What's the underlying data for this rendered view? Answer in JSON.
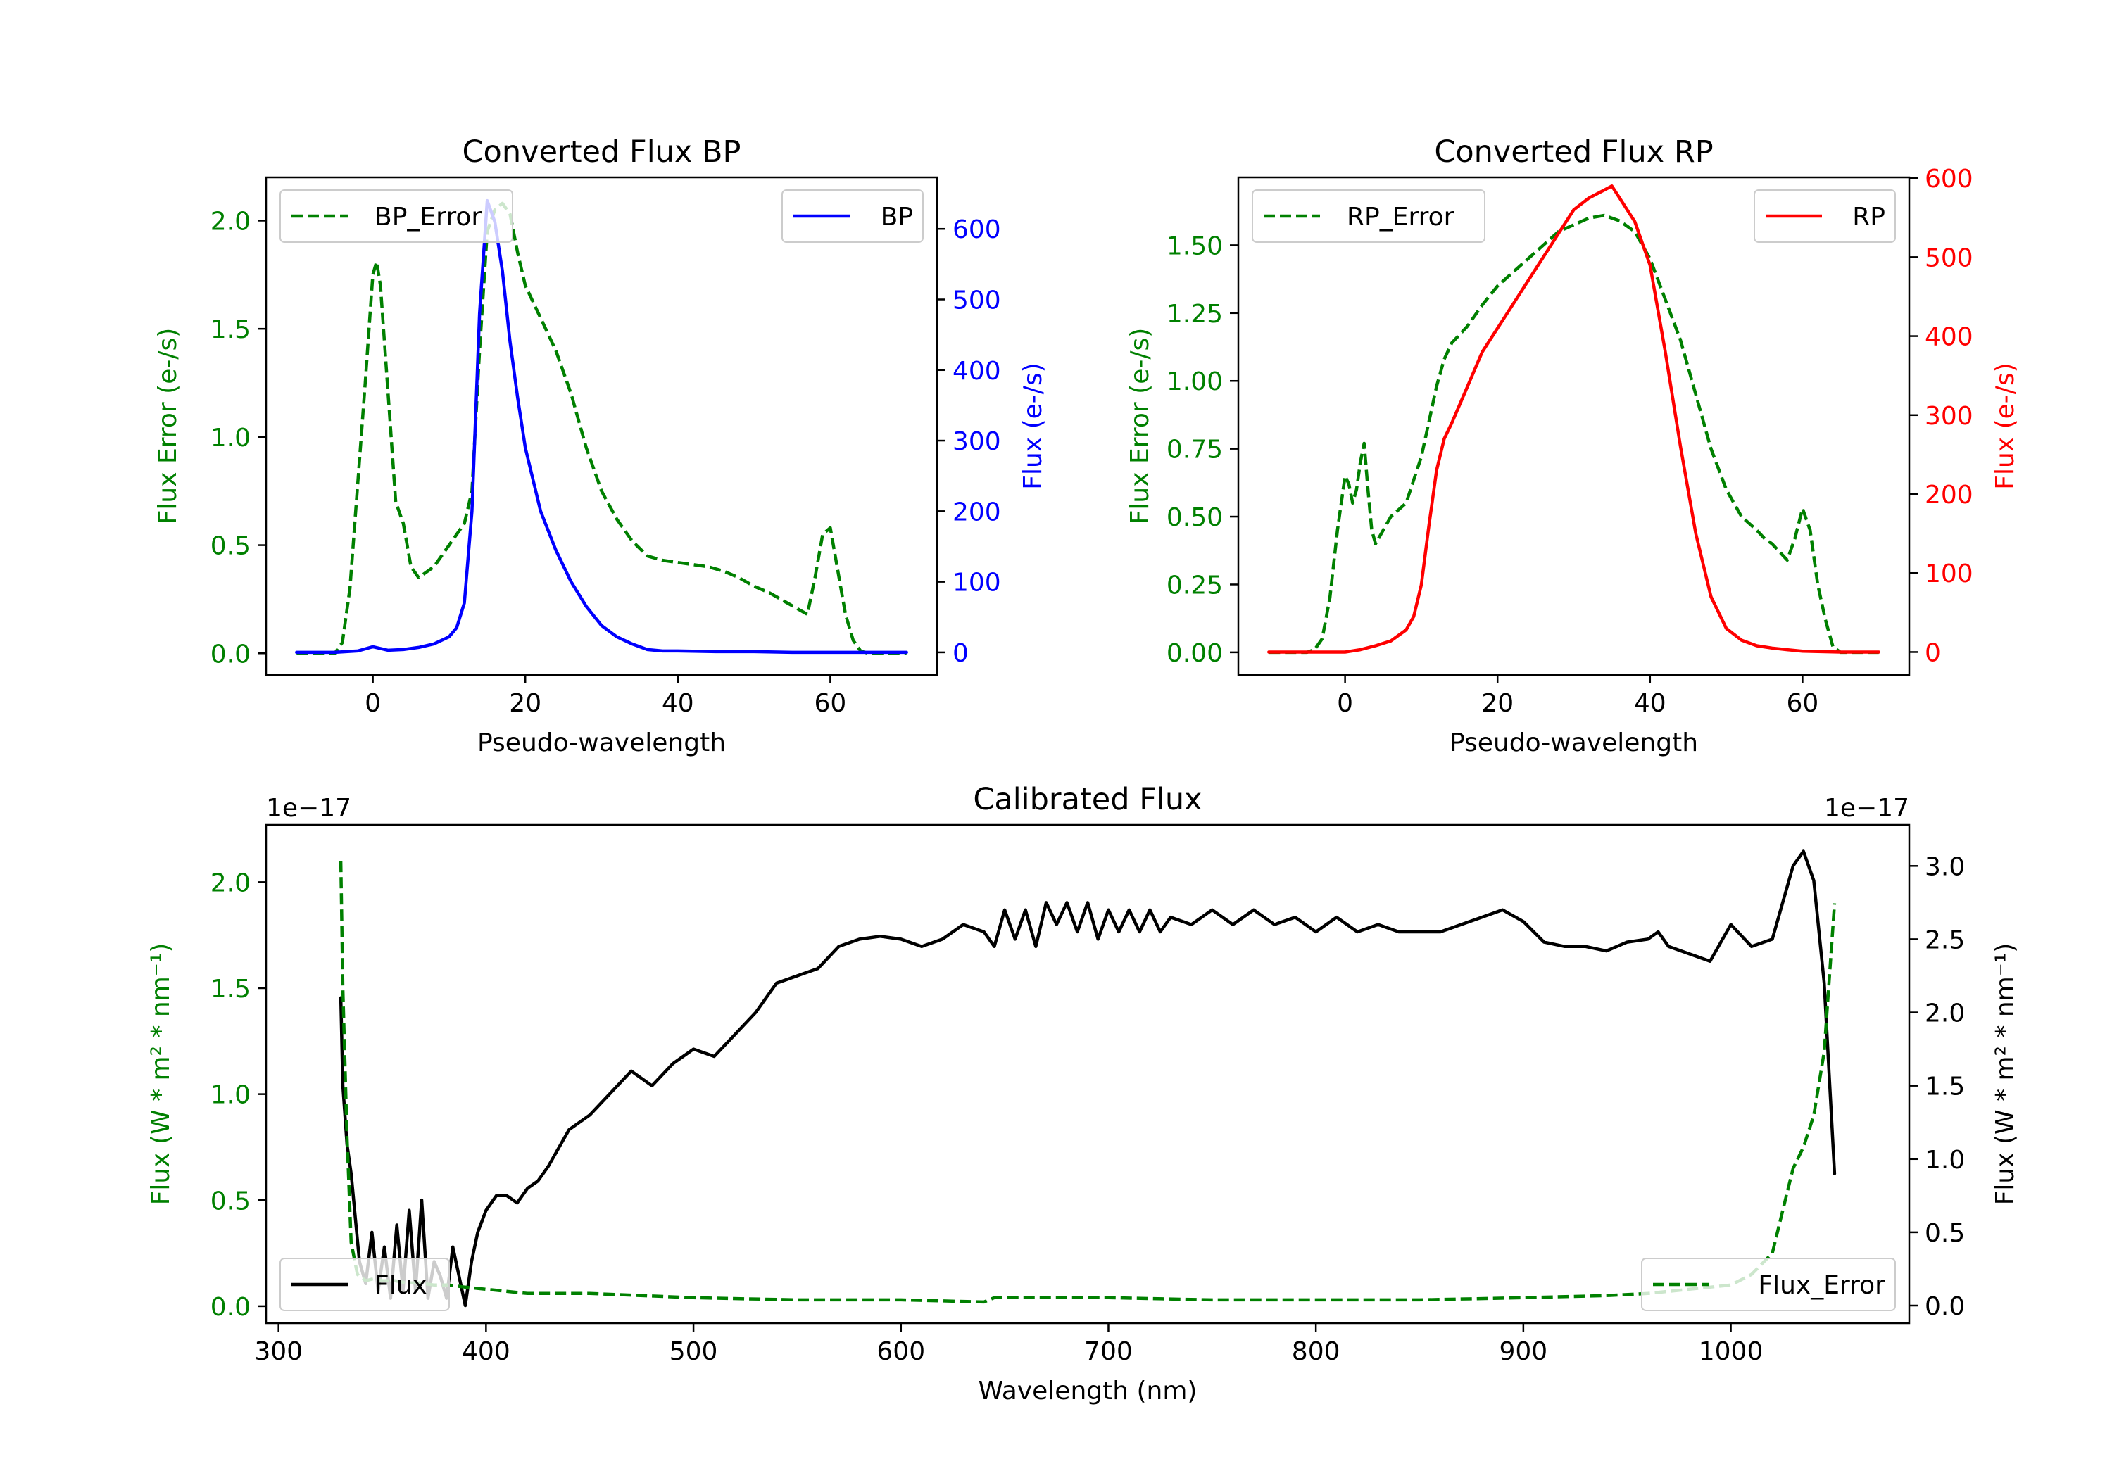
{
  "chart_data": [
    {
      "type": "line",
      "title": "Converted Flux BP",
      "xlabel": "Pseudo-wavelength",
      "ylabel_left": "Flux Error (e-/s)",
      "ylabel_right": "Flux (e-/s)",
      "xlim": [
        -14,
        74
      ],
      "ylim_left": [
        -0.1,
        2.2
      ],
      "ylim_right": [
        -32,
        673
      ],
      "xticks": [
        0,
        20,
        40,
        60
      ],
      "yticks_left": [
        "0.0",
        "0.5",
        "1.0",
        "1.5",
        "2.0"
      ],
      "yticks_right": [
        "0",
        "100",
        "200",
        "300",
        "400",
        "500",
        "600"
      ],
      "legend_left": {
        "label": "BP_Error",
        "location": "top-left"
      },
      "legend_right": {
        "label": "BP",
        "location": "top-right"
      },
      "series": [
        {
          "name": "BP_Error",
          "axis": "left",
          "color": "#008000",
          "style": "dashed",
          "x": [
            -10,
            -5,
            -4,
            -3,
            -1,
            0,
            0.5,
            1,
            2,
            3,
            4,
            5,
            6,
            8,
            10,
            12,
            13,
            14,
            15,
            16,
            17,
            18,
            19,
            20,
            22,
            24,
            26,
            28,
            30,
            32,
            34,
            36,
            38,
            40,
            42,
            44,
            46,
            48,
            50,
            52,
            54,
            56,
            57,
            58,
            59,
            60,
            61,
            62,
            63,
            64,
            65,
            66,
            70
          ],
          "y": [
            0.0,
            0.0,
            0.05,
            0.3,
            1.25,
            1.75,
            1.81,
            1.7,
            1.2,
            0.7,
            0.6,
            0.4,
            0.35,
            0.4,
            0.5,
            0.6,
            0.75,
            1.4,
            1.95,
            2.05,
            2.08,
            2.03,
            1.85,
            1.7,
            1.55,
            1.4,
            1.2,
            0.95,
            0.75,
            0.62,
            0.52,
            0.45,
            0.43,
            0.42,
            0.41,
            0.4,
            0.38,
            0.35,
            0.31,
            0.28,
            0.24,
            0.2,
            0.18,
            0.35,
            0.55,
            0.58,
            0.38,
            0.18,
            0.06,
            0.01,
            0.0,
            0.0,
            0.0
          ]
        },
        {
          "name": "BP",
          "axis": "right",
          "color": "#0000ff",
          "style": "solid",
          "x": [
            -10,
            -5,
            -2,
            0,
            2,
            4,
            6,
            8,
            10,
            11,
            12,
            13,
            14,
            15,
            16,
            17,
            18,
            19,
            20,
            22,
            24,
            26,
            28,
            30,
            32,
            34,
            36,
            38,
            40,
            45,
            50,
            55,
            60,
            65,
            70
          ],
          "y": [
            0,
            0,
            2,
            8,
            3,
            4,
            7,
            12,
            22,
            35,
            70,
            200,
            480,
            640,
            610,
            540,
            440,
            360,
            290,
            200,
            145,
            100,
            65,
            38,
            22,
            12,
            4,
            2,
            2,
            1,
            1,
            0,
            0,
            0,
            0
          ]
        }
      ]
    },
    {
      "type": "line",
      "title": "Converted Flux RP",
      "xlabel": "Pseudo-wavelength",
      "ylabel_left": "Flux Error (e-/s)",
      "ylabel_right": "Flux (e-/s)",
      "xlim": [
        -14,
        74
      ],
      "ylim_left": [
        -0.0833,
        1.75
      ],
      "ylim_right": [
        -29,
        601
      ],
      "xticks": [
        0,
        20,
        40,
        60
      ],
      "yticks_left": [
        "0.00",
        "0.25",
        "0.50",
        "0.75",
        "1.00",
        "1.25",
        "1.50"
      ],
      "yticks_right": [
        "0",
        "100",
        "200",
        "300",
        "400",
        "500",
        "600"
      ],
      "legend_left": {
        "label": "RP_Error",
        "location": "top-left"
      },
      "legend_right": {
        "label": "RP",
        "location": "top-right"
      },
      "series": [
        {
          "name": "RP_Error",
          "axis": "left",
          "color": "#008000",
          "style": "dashed",
          "x": [
            -10,
            -5,
            -4,
            -3,
            -2,
            -1,
            0,
            0.5,
            1,
            1.5,
            2,
            2.5,
            3,
            3.5,
            4,
            5,
            6,
            8,
            10,
            12,
            13,
            14,
            16,
            18,
            20,
            24,
            28,
            32,
            34,
            36,
            38,
            40,
            42,
            44,
            46,
            48,
            50,
            52,
            54,
            55,
            56,
            57,
            58,
            59,
            60,
            61,
            62,
            63,
            64,
            65,
            70
          ],
          "y": [
            0.0,
            0.0,
            0.01,
            0.05,
            0.2,
            0.45,
            0.65,
            0.62,
            0.55,
            0.6,
            0.7,
            0.77,
            0.6,
            0.45,
            0.4,
            0.45,
            0.5,
            0.55,
            0.72,
            0.98,
            1.08,
            1.14,
            1.2,
            1.28,
            1.35,
            1.45,
            1.55,
            1.6,
            1.61,
            1.59,
            1.55,
            1.45,
            1.3,
            1.15,
            0.95,
            0.75,
            0.6,
            0.5,
            0.45,
            0.42,
            0.4,
            0.37,
            0.34,
            0.42,
            0.53,
            0.45,
            0.25,
            0.12,
            0.02,
            0.0,
            0.0
          ]
        },
        {
          "name": "RP",
          "axis": "right",
          "color": "#ff0000",
          "style": "solid",
          "x": [
            -10,
            -5,
            0,
            2,
            4,
            6,
            8,
            9,
            10,
            11,
            12,
            13,
            14,
            16,
            18,
            20,
            22,
            24,
            26,
            28,
            30,
            32,
            34,
            35,
            36,
            38,
            40,
            42,
            44,
            46,
            48,
            50,
            52,
            54,
            56,
            58,
            60,
            65,
            70
          ],
          "y": [
            0,
            0,
            0,
            3,
            8,
            14,
            28,
            45,
            85,
            160,
            230,
            270,
            290,
            335,
            380,
            410,
            440,
            470,
            500,
            530,
            560,
            575,
            585,
            590,
            575,
            545,
            490,
            380,
            260,
            150,
            70,
            30,
            15,
            8,
            5,
            3,
            1,
            0,
            0
          ]
        }
      ]
    },
    {
      "type": "line",
      "title": "Calibrated Flux",
      "xlabel": "Wavelength (nm)",
      "ylabel_left": "Flux (W * m² * nm⁻¹)",
      "ylabel_right": "Flux (W * m² * nm⁻¹)",
      "offset_left": "1e−17",
      "offset_right": "1e−17",
      "xlim": [
        294,
        1086
      ],
      "ylim_left": [
        -0.08,
        2.27
      ],
      "ylim_right": [
        -0.12,
        3.28
      ],
      "xticks": [
        300,
        400,
        500,
        600,
        700,
        800,
        900,
        1000
      ],
      "yticks_left": [
        "0.0",
        "0.5",
        "1.0",
        "1.5",
        "2.0"
      ],
      "yticks_right": [
        "0.0",
        "0.5",
        "1.0",
        "1.5",
        "2.0",
        "2.5",
        "3.0"
      ],
      "legend_left": {
        "label": "Flux",
        "location": "bottom-left"
      },
      "legend_right": {
        "label": "Flux_Error",
        "location": "bottom-right"
      },
      "series": [
        {
          "name": "Flux",
          "axis": "right",
          "color": "#000000",
          "style": "solid",
          "x": [
            330,
            331,
            333,
            335,
            337,
            339,
            342,
            345,
            348,
            351,
            354,
            357,
            360,
            363,
            366,
            369,
            372,
            375,
            378,
            381,
            384,
            387,
            390,
            393,
            396,
            400,
            405,
            410,
            415,
            420,
            425,
            430,
            440,
            450,
            460,
            470,
            480,
            490,
            500,
            510,
            520,
            530,
            540,
            550,
            560,
            570,
            580,
            590,
            600,
            610,
            620,
            630,
            640,
            645,
            650,
            655,
            660,
            665,
            670,
            675,
            680,
            685,
            690,
            695,
            700,
            705,
            710,
            715,
            720,
            725,
            730,
            740,
            750,
            760,
            770,
            780,
            790,
            800,
            810,
            820,
            830,
            840,
            850,
            860,
            870,
            880,
            890,
            900,
            910,
            920,
            930,
            940,
            950,
            960,
            965,
            970,
            980,
            990,
            1000,
            1010,
            1020,
            1030,
            1035,
            1040,
            1045,
            1050
          ],
          "y": [
            2.1,
            1.5,
            1.1,
            0.9,
            0.6,
            0.3,
            0.15,
            0.5,
            0.1,
            0.4,
            0.05,
            0.55,
            0.1,
            0.65,
            0.1,
            0.72,
            0.05,
            0.3,
            0.2,
            0.05,
            0.4,
            0.2,
            0.0,
            0.3,
            0.5,
            0.65,
            0.75,
            0.75,
            0.7,
            0.8,
            0.85,
            0.95,
            1.2,
            1.3,
            1.45,
            1.6,
            1.5,
            1.65,
            1.75,
            1.7,
            1.85,
            2.0,
            2.2,
            2.25,
            2.3,
            2.45,
            2.5,
            2.52,
            2.5,
            2.45,
            2.5,
            2.6,
            2.55,
            2.45,
            2.7,
            2.5,
            2.7,
            2.45,
            2.75,
            2.6,
            2.75,
            2.55,
            2.75,
            2.5,
            2.7,
            2.55,
            2.7,
            2.55,
            2.7,
            2.55,
            2.65,
            2.6,
            2.7,
            2.6,
            2.7,
            2.6,
            2.65,
            2.55,
            2.65,
            2.55,
            2.6,
            2.55,
            2.55,
            2.55,
            2.6,
            2.65,
            2.7,
            2.62,
            2.48,
            2.45,
            2.45,
            2.42,
            2.48,
            2.5,
            2.55,
            2.45,
            2.4,
            2.35,
            2.6,
            2.45,
            2.5,
            3.0,
            3.1,
            2.9,
            2.2,
            0.9
          ]
        },
        {
          "name": "Flux_Error",
          "axis": "left",
          "color": "#008000",
          "style": "dashed",
          "x": [
            330,
            331,
            333,
            335,
            338,
            342,
            346,
            350,
            356,
            362,
            368,
            375,
            382,
            390,
            400,
            420,
            450,
            500,
            550,
            600,
            640,
            645,
            700,
            750,
            800,
            850,
            900,
            940,
            960,
            980,
            1000,
            1010,
            1020,
            1025,
            1030,
            1035,
            1040,
            1045,
            1050
          ],
          "y": [
            2.1,
            1.5,
            0.8,
            0.3,
            0.15,
            0.12,
            0.13,
            0.12,
            0.12,
            0.11,
            0.11,
            0.1,
            0.1,
            0.09,
            0.08,
            0.06,
            0.06,
            0.04,
            0.03,
            0.03,
            0.02,
            0.04,
            0.04,
            0.03,
            0.03,
            0.03,
            0.04,
            0.05,
            0.06,
            0.08,
            0.1,
            0.15,
            0.25,
            0.45,
            0.65,
            0.75,
            0.9,
            1.2,
            1.9
          ]
        }
      ]
    }
  ]
}
